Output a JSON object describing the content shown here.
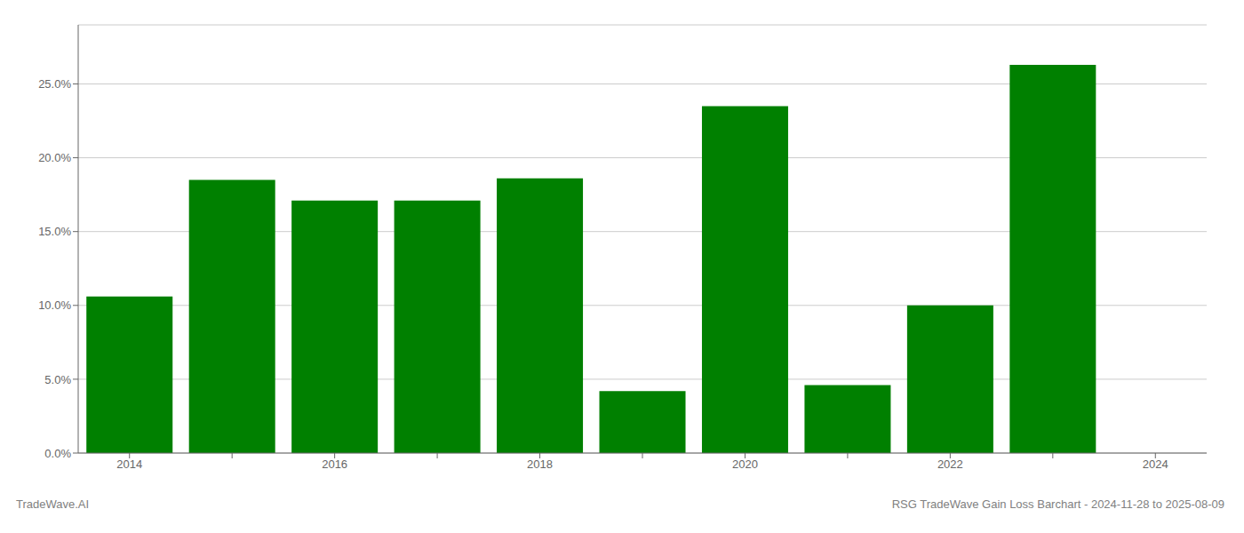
{
  "chart_data": {
    "type": "bar",
    "categories": [
      "2014",
      null,
      "2016",
      null,
      "2018",
      null,
      "2020",
      null,
      "2022",
      null,
      "2024"
    ],
    "values": [
      0.106,
      0.185,
      0.171,
      0.171,
      0.186,
      0.042,
      0.235,
      0.046,
      0.1,
      0.263,
      0.0
    ],
    "color": "#008000",
    "ylim": [
      0.0,
      0.29
    ],
    "yticks": [
      {
        "value": 0.0,
        "label": "0.0%"
      },
      {
        "value": 0.05,
        "label": "5.0%"
      },
      {
        "value": 0.1,
        "label": "10.0%"
      },
      {
        "value": 0.15,
        "label": "15.0%"
      },
      {
        "value": 0.2,
        "label": "20.0%"
      },
      {
        "value": 0.25,
        "label": "25.0%"
      }
    ],
    "grid": true,
    "annotations": [
      "TradeWave.AI",
      "RSG TradeWave Gain Loss Barchart - 2024-11-28 to 2025-08-09"
    ]
  }
}
